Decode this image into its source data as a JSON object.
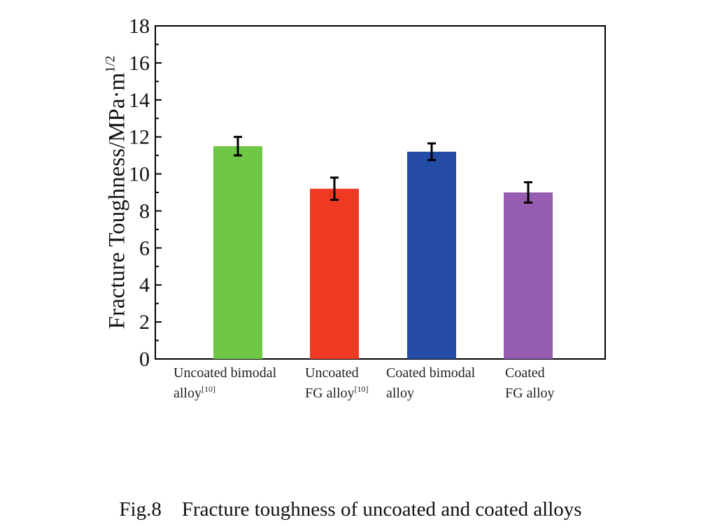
{
  "chart_data": {
    "type": "bar",
    "title": "",
    "ylabel": "Fracture Toughness/MPa·m",
    "ylabel_superscript": "1/2",
    "xlabel": "",
    "ylim": [
      0,
      18
    ],
    "yticks": [
      0,
      2,
      4,
      6,
      8,
      10,
      12,
      14,
      16,
      18
    ],
    "categories": [
      {
        "line1": "Uncoated bimodal",
        "line2": "alloy",
        "ref": "[10]"
      },
      {
        "line1": "Uncoated",
        "line2": "FG alloy",
        "ref": "[10]"
      },
      {
        "line1": "Coated bimodal",
        "line2": "alloy",
        "ref": ""
      },
      {
        "line1": "Coated",
        "line2": "FG alloy",
        "ref": ""
      }
    ],
    "values": [
      11.5,
      9.2,
      11.2,
      9.0
    ],
    "errors": [
      0.5,
      0.6,
      0.45,
      0.55
    ],
    "colors": [
      "#6fc845",
      "#ee3a22",
      "#244ca4",
      "#975db0"
    ],
    "grid": false
  },
  "caption": {
    "fig": "Fig.8",
    "text": "Fracture toughness of uncoated and coated alloys"
  }
}
